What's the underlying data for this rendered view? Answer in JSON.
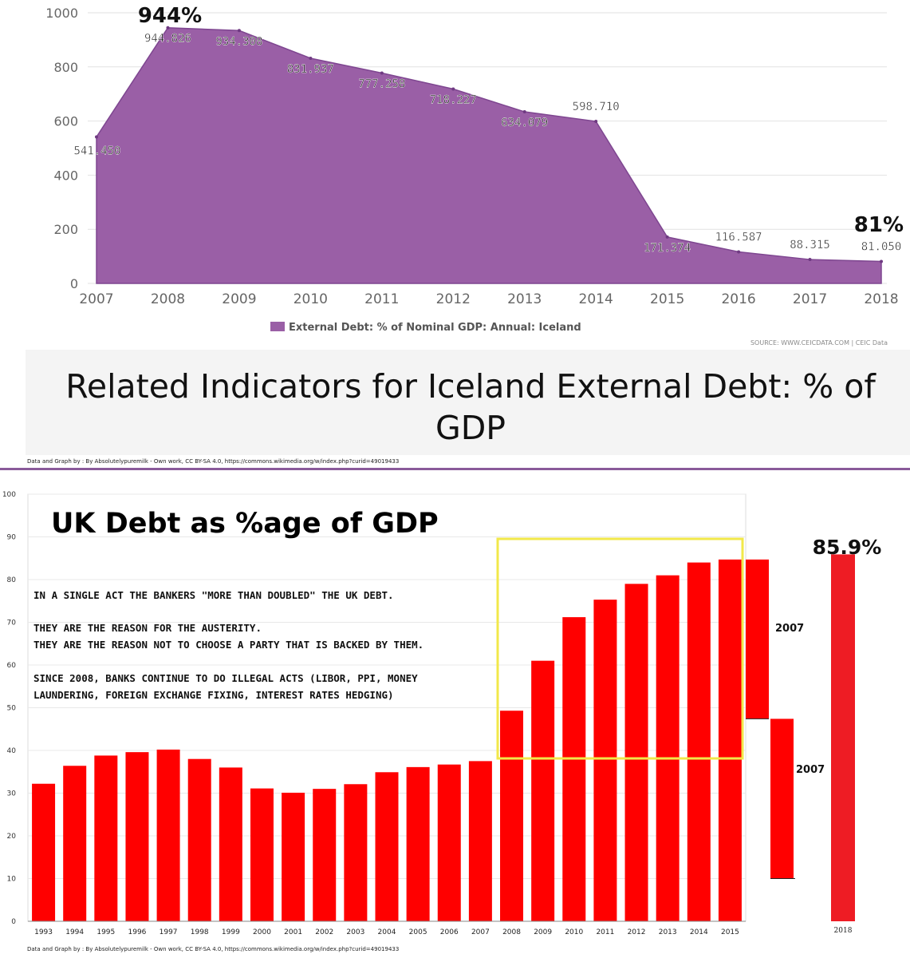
{
  "top": {
    "related_title": "Related Indicators for Iceland External Debt: % of GDP",
    "source": "SOURCE: WWW.CEICDATA.COM | CEIC Data",
    "callout_high": "944%",
    "callout_low": "81%"
  },
  "credit_text": "Data and Graph by : By Absolutelypuremilk - Own work, CC BY-SA 4.0, https://commons.wikimedia.org/w/index.php?curid=49019433",
  "bottom": {
    "title": "UK Debt as %age of GDP",
    "notes": [
      "IN A SINGLE ACT THE BANKERS \"MORE THAN DOUBLED\" THE UK DEBT.",
      "THEY ARE THE REASON FOR THE AUSTERITY.",
      "THEY ARE THE REASON NOT TO CHOOSE A PARTY THAT IS BACKED BY THEM.",
      "SINCE 2008, BANKS CONTINUE TO DO ILLEGAL ACTS (LIBOR, PPI, MONEY",
      "LAUNDERING, FOREIGN EXCHANGE FIXING, INTEREST RATES HEDGING)"
    ],
    "callout_2018": "85.9%",
    "label_2007_upper": "2007",
    "label_2007_lower": "2007",
    "label_2018": "2018"
  },
  "colors": {
    "area_fill": "#9a5fa6",
    "area_line": "#7e4690",
    "bar_red": "#ff0000",
    "bar_red_2018": "#ee1c24",
    "highlight_box": "#f2e84a",
    "divider": "#8a5a9a"
  },
  "chart_data": [
    {
      "type": "area",
      "title": "",
      "x": [
        "2007",
        "2008",
        "2009",
        "2010",
        "2011",
        "2012",
        "2013",
        "2014",
        "2015",
        "2016",
        "2017",
        "2018"
      ],
      "values": [
        541.45,
        944.826,
        934.308,
        831.937,
        777.258,
        718.227,
        634.079,
        598.71,
        171.374,
        116.587,
        88.315,
        81.05
      ],
      "value_labels": [
        "541.450",
        "944.826",
        "934.308",
        "831.937",
        "777.258",
        "718.227",
        "634.079",
        "598.710",
        "171.374",
        "116.587",
        "88.315",
        "81.050"
      ],
      "y_ticks": [
        "0",
        "200",
        "400",
        "600",
        "800",
        "1000"
      ],
      "ylim": [
        0,
        1000
      ],
      "legend": [
        "External Debt: % of Nominal GDP: Annual: Iceland"
      ],
      "legend_position": "bottom",
      "grid": true
    },
    {
      "type": "bar",
      "title": "UK Debt as %age of GDP",
      "categories": [
        "1993",
        "1994",
        "1995",
        "1996",
        "1997",
        "1998",
        "1999",
        "2000",
        "2001",
        "2002",
        "2003",
        "2004",
        "2005",
        "2006",
        "2007",
        "2008",
        "2009",
        "2010",
        "2011",
        "2012",
        "2013",
        "2014",
        "2015"
      ],
      "values": [
        32.2,
        36.4,
        38.8,
        39.6,
        40.2,
        38.0,
        36.0,
        31.1,
        30.1,
        31.0,
        32.1,
        34.9,
        36.1,
        36.7,
        37.5,
        49.3,
        61.0,
        71.2,
        75.3,
        79.0,
        81.0,
        84.0,
        84.7
      ],
      "y_ticks": [
        "0",
        "10",
        "20",
        "30",
        "40",
        "50",
        "60",
        "70",
        "80",
        "90",
        "100"
      ],
      "ylim": [
        0,
        100
      ],
      "grid": true,
      "highlight_range": [
        "2008",
        "2015"
      ],
      "comparison_bars": [
        {
          "label": "2007",
          "value_top": 84.7,
          "value_bottom": 47.4
        },
        {
          "label": "2007",
          "value_top": 47.4,
          "value_bottom": 10.0
        },
        {
          "label": "2018",
          "value_top": 85.9,
          "value_bottom": 0
        }
      ]
    }
  ]
}
